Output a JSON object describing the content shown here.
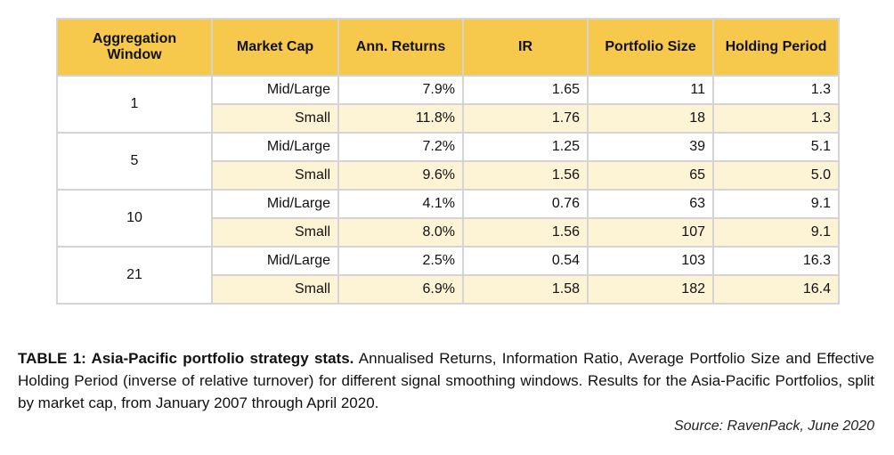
{
  "table": {
    "headers": [
      "Aggregation Window",
      "Market Cap",
      "Ann. Returns",
      "IR",
      "Portfolio Size",
      "Holding Period"
    ],
    "header_lines": {
      "aggregation_line1": "Aggregation",
      "aggregation_line2": "Window"
    },
    "groups": [
      {
        "window": "1",
        "rows": [
          {
            "market_cap": "Mid/Large",
            "ann_returns": "7.9%",
            "ir": "1.65",
            "portfolio_size": "11",
            "holding_period": "1.3"
          },
          {
            "market_cap": "Small",
            "ann_returns": "11.8%",
            "ir": "1.76",
            "portfolio_size": "18",
            "holding_period": "1.3"
          }
        ]
      },
      {
        "window": "5",
        "rows": [
          {
            "market_cap": "Mid/Large",
            "ann_returns": "7.2%",
            "ir": "1.25",
            "portfolio_size": "39",
            "holding_period": "5.1"
          },
          {
            "market_cap": "Small",
            "ann_returns": "9.6%",
            "ir": "1.56",
            "portfolio_size": "65",
            "holding_period": "5.0"
          }
        ]
      },
      {
        "window": "10",
        "rows": [
          {
            "market_cap": "Mid/Large",
            "ann_returns": "4.1%",
            "ir": "0.76",
            "portfolio_size": "63",
            "holding_period": "9.1"
          },
          {
            "market_cap": "Small",
            "ann_returns": "8.0%",
            "ir": "1.56",
            "portfolio_size": "107",
            "holding_period": "9.1"
          }
        ]
      },
      {
        "window": "21",
        "rows": [
          {
            "market_cap": "Mid/Large",
            "ann_returns": "2.5%",
            "ir": "0.54",
            "portfolio_size": "103",
            "holding_period": "16.3"
          },
          {
            "market_cap": "Small",
            "ann_returns": "6.9%",
            "ir": "1.58",
            "portfolio_size": "182",
            "holding_period": "16.4"
          }
        ]
      }
    ]
  },
  "caption": {
    "title": "TABLE 1: Asia-Pacific portfolio strategy stats.",
    "body": " Annualised Returns, Information Ratio, Average Portfolio Size and Effective Holding Period (inverse of relative turnover) for different signal smoothing windows. Results for the Asia-Pacific Portfolios, split by market cap,  from January 2007 through April 2020."
  },
  "source": "Source: RavenPack, June 2020",
  "colors": {
    "header_bg": "#f6c84c",
    "alt_row_bg": "#fdf3d5",
    "border": "#d4d4d4"
  }
}
